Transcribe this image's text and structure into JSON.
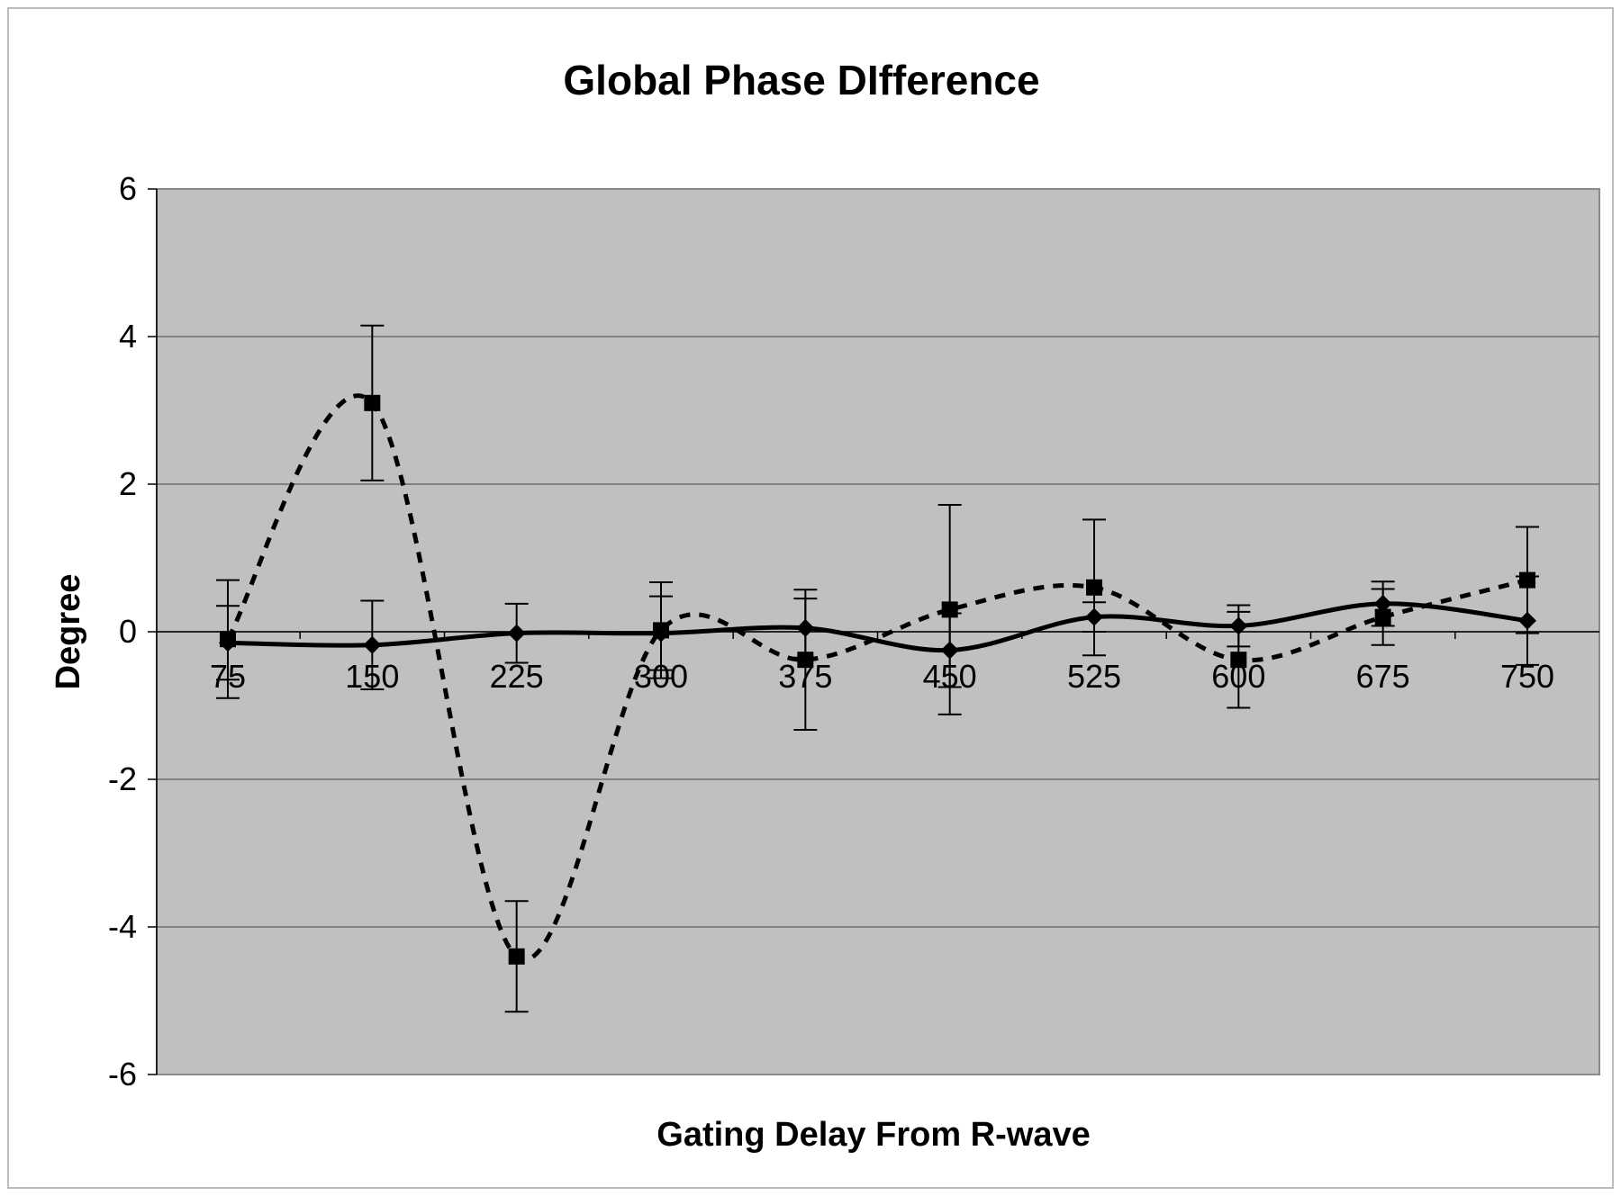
{
  "chart_data": {
    "type": "line",
    "title": "Global Phase DIfference",
    "xlabel": "Gating Delay From R-wave",
    "ylabel": "Degree",
    "categories": [
      "75",
      "150",
      "225",
      "300",
      "375",
      "450",
      "525",
      "600",
      "675",
      "750"
    ],
    "yticks": [
      "6",
      "4",
      "2",
      "0",
      "-2",
      "-4",
      "-6"
    ],
    "ylim": [
      -6,
      6
    ],
    "ytick_step": 2,
    "grid": true,
    "legend": "none",
    "plot_background": "#c0c0c0",
    "series": [
      {
        "style": "solid",
        "marker": "diamond",
        "color": "#000000",
        "values": [
          -0.15,
          -0.18,
          -0.02,
          -0.02,
          0.05,
          -0.25,
          0.2,
          0.08,
          0.38,
          0.15
        ],
        "error": [
          0.5,
          0.6,
          0.4,
          0.5,
          0.4,
          0.5,
          0.2,
          0.28,
          0.3,
          0.6
        ]
      },
      {
        "style": "dashed",
        "marker": "square",
        "color": "#000000",
        "values": [
          -0.1,
          3.1,
          -4.4,
          0.02,
          -0.38,
          0.3,
          0.6,
          -0.38,
          0.2,
          0.7
        ],
        "error": [
          0.8,
          1.05,
          0.75,
          0.65,
          0.95,
          1.42,
          0.92,
          0.65,
          0.38,
          0.72
        ]
      }
    ]
  }
}
